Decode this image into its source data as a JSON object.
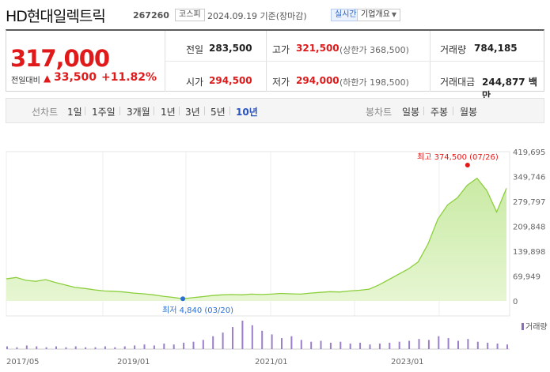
{
  "header": {
    "name": "HD현대일렉트릭",
    "code": "267260",
    "market_badge": "코스피",
    "date": "2024.09.19",
    "basis": "기준(장마감)",
    "realtime_label": "실시간",
    "company_button": "기업개요"
  },
  "price": {
    "current": "317,000",
    "change_label": "전일대비",
    "change_value": "33,500",
    "change_pct": "+11.82%",
    "up_color": "#e01a1a"
  },
  "stats": {
    "prev_label": "전일",
    "prev_value": "283,500",
    "high_label": "고가",
    "high_value": "321,500",
    "upper_limit": "(상한가 368,500)",
    "volume_label": "거래량",
    "volume_value": "784,185",
    "open_label": "시가",
    "open_value": "294,500",
    "low_label": "저가",
    "low_value": "294,000",
    "lower_limit": "(하한가 198,500)",
    "amount_label": "거래대금",
    "amount_value": "244,877 백만"
  },
  "tabs": {
    "line_chart_label": "선차트",
    "line_items": [
      "1일",
      "1주일",
      "3개월",
      "1년",
      "3년",
      "5년",
      "10년"
    ],
    "active": "10년",
    "candle_chart_label": "봉차트",
    "candle_items": [
      "일봉",
      "주봉",
      "월봉"
    ]
  },
  "chart_data": {
    "type": "area",
    "y_ticks": [
      "419,695",
      "349,746",
      "279,797",
      "209,848",
      "139,898",
      "69,949",
      "0"
    ],
    "ylim": [
      0,
      419695
    ],
    "x_ticks": [
      "2017/05",
      "2019/01",
      "2021/01",
      "2023/01"
    ],
    "max_annotation": "최고 374,500 (07/26)",
    "min_annotation": "최저 4,840 (03/20)",
    "volume_legend": "거래량",
    "line_color": "#8ccf3d",
    "fill_color": "#e6f6d2",
    "max_color": "#e01a1a",
    "min_color": "#2a6fd6",
    "series": [
      {
        "values": [
          62000,
          66000,
          58000,
          55000,
          60000,
          52000,
          45000,
          38000,
          35000,
          31000,
          28000,
          27000,
          25000,
          22000,
          20000,
          17000,
          13000,
          10000,
          6000,
          9000,
          12000,
          15000,
          17000,
          18000,
          17000,
          19000,
          18000,
          19000,
          21000,
          20000,
          19000,
          22000,
          24000,
          26000,
          25000,
          28000,
          30000,
          33000,
          45000,
          60000,
          75000,
          90000,
          110000,
          160000,
          230000,
          270000,
          290000,
          325000,
          345000,
          310000,
          250000,
          317000
        ]
      }
    ],
    "volume": [
      3,
      2,
      4,
      3,
      2,
      3,
      2,
      3,
      2,
      2,
      3,
      2,
      3,
      4,
      5,
      4,
      6,
      5,
      7,
      8,
      10,
      14,
      18,
      24,
      31,
      26,
      20,
      16,
      12,
      14,
      10,
      8,
      9,
      7,
      8,
      6,
      7,
      5,
      6,
      7,
      8,
      9,
      11,
      10,
      14,
      12,
      9,
      11,
      8,
      7,
      6,
      5
    ]
  }
}
